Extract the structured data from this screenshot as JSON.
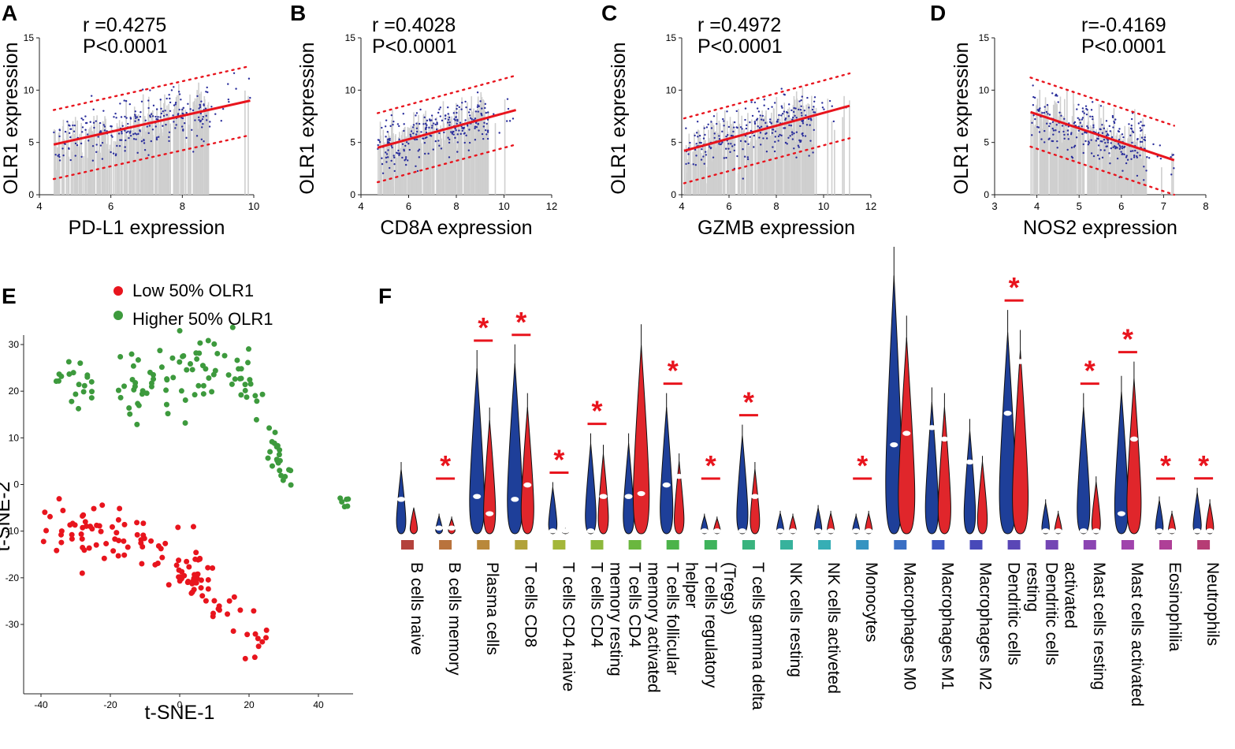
{
  "colors": {
    "red": "#e8141d",
    "blue": "#1f3a93",
    "green": "#3d9a3d",
    "gray_bar": "#cfcfcf",
    "scatter_point": "#2b2f9c",
    "violin_red": "#e0262b",
    "violin_blue": "#1e3f99"
  },
  "chart_data": [
    {
      "panel": "A",
      "type": "scatter",
      "stat_r": "r =0.4275",
      "stat_p": "P<0.0001",
      "xlabel": "PD-L1 expression",
      "ylabel": "OLR1 expression",
      "xlim": [
        4,
        10
      ],
      "ylim": [
        0,
        15
      ],
      "xticks": [
        "4",
        "6",
        "8",
        "10"
      ],
      "yticks": [
        "0",
        "5",
        "10",
        "15"
      ],
      "x_range": [
        4.4,
        9.9
      ],
      "fit": {
        "x1": 4.4,
        "y1": 4.8,
        "x2": 9.9,
        "y2": 9.0
      },
      "band_offset": 3.3
    },
    {
      "panel": "B",
      "type": "scatter",
      "stat_r": "r =0.4028",
      "stat_p": "P<0.0001",
      "xlabel": "CD8A expression",
      "ylabel": "OLR1 expression",
      "xlim": [
        4,
        12
      ],
      "ylim": [
        0,
        15
      ],
      "xticks": [
        "4",
        "6",
        "8",
        "10",
        "12"
      ],
      "yticks": [
        "0",
        "5",
        "10",
        "15"
      ],
      "x_range": [
        4.7,
        10.5
      ],
      "fit": {
        "x1": 4.7,
        "y1": 4.5,
        "x2": 10.5,
        "y2": 8.1
      },
      "band_offset": 3.3
    },
    {
      "panel": "C",
      "type": "scatter",
      "stat_r": "r =0.4972",
      "stat_p": "P<0.0001",
      "xlabel": "GZMB expression",
      "ylabel": "OLR1 expression",
      "xlim": [
        4,
        12
      ],
      "ylim": [
        0,
        15
      ],
      "xticks": [
        "4",
        "6",
        "8",
        "10",
        "12"
      ],
      "yticks": [
        "0",
        "5",
        "10",
        "15"
      ],
      "x_range": [
        4.1,
        11.1
      ],
      "fit": {
        "x1": 4.1,
        "y1": 4.2,
        "x2": 11.1,
        "y2": 8.5
      },
      "band_offset": 3.1
    },
    {
      "panel": "D",
      "type": "scatter",
      "stat_r": "r=-0.4169",
      "stat_p": "P<0.0001",
      "xlabel": "NOS2 expression",
      "ylabel": "OLR1 expression",
      "xlim": [
        3,
        8
      ],
      "ylim": [
        0,
        15
      ],
      "xticks": [
        "3",
        "4",
        "5",
        "6",
        "7",
        "8"
      ],
      "yticks": [
        "0",
        "5",
        "10",
        "15"
      ],
      "x_range": [
        3.85,
        7.25
      ],
      "fit": {
        "x1": 3.85,
        "y1": 7.9,
        "x2": 7.25,
        "y2": 3.3
      },
      "band_offset": 3.3
    },
    {
      "panel": "E",
      "type": "scatter",
      "xlabel": "t-SNE-1",
      "ylabel": "t-SNE-2",
      "xlim": [
        -40,
        50
      ],
      "ylim": [
        -38,
        31
      ],
      "xticks": [
        "-40",
        "-20",
        "0",
        "20",
        "40"
      ],
      "yticks": [
        "30",
        "20",
        "10",
        "0",
        "-10",
        "-20",
        "-30"
      ],
      "legend": [
        "Low 50% OLR1",
        "Higher 50% OLR1"
      ],
      "clusters": [
        {
          "group": "high",
          "cx": -30,
          "cy": 22,
          "sx": 4,
          "sy": 2.5,
          "n": 20
        },
        {
          "group": "high",
          "cx": -11,
          "cy": 21,
          "sx": 4,
          "sy": 4,
          "n": 28
        },
        {
          "group": "high",
          "cx": 3,
          "cy": 24,
          "sx": 6,
          "sy": 3,
          "n": 35
        },
        {
          "group": "high",
          "cx": 19,
          "cy": 22,
          "sx": 3,
          "sy": 4,
          "n": 18
        },
        {
          "group": "high",
          "cx": 28,
          "cy": 6,
          "sx": 2.5,
          "sy": 5,
          "n": 22
        },
        {
          "group": "high",
          "cx": 48,
          "cy": -3,
          "sx": 1,
          "sy": 1,
          "n": 6
        },
        {
          "group": "low",
          "cx": -30,
          "cy": -10,
          "sx": 5,
          "sy": 3,
          "n": 35
        },
        {
          "group": "low",
          "cx": -13,
          "cy": -12,
          "sx": 5,
          "sy": 3,
          "n": 30
        },
        {
          "group": "low",
          "cx": 2,
          "cy": -18,
          "sx": 4,
          "sy": 3,
          "n": 22
        },
        {
          "group": "low",
          "cx": 12,
          "cy": -28,
          "sx": 5,
          "sy": 4,
          "n": 40
        }
      ]
    },
    {
      "panel": "F",
      "type": "violin",
      "categories": [
        "B cells naive",
        "B cells memory",
        "Plasma cells",
        "T cells CD8",
        "T cells CD4 naive",
        "T cells CD4 memory resting",
        "T cells CD4 memory activated",
        "T cells follicular helper",
        "T cells regulatory (Tregs)",
        "T cells gamma delta",
        "NK cells resting",
        "NK cells activeted",
        "Monocytes",
        "Macrophages M0",
        "Macrophages M1",
        "Macrophages M2",
        "Dendritic cells resting",
        "Dendritic cells activated",
        "Mast cells resting",
        "Mast cells activated",
        "Eosinophilia",
        "Neutrophils"
      ],
      "label_lines": [
        [
          "B cells naive"
        ],
        [
          "B cells memory"
        ],
        [
          "Plasma cells"
        ],
        [
          "T cells CD8"
        ],
        [
          "T cells CD4 naive"
        ],
        [
          "T cells CD4",
          "memory resting"
        ],
        [
          "T cells CD4",
          "memory activated"
        ],
        [
          "T cells follicular",
          "helper"
        ],
        [
          "T cells regulatory",
          "(Tregs)"
        ],
        [
          "T cells gamma delta"
        ],
        [
          "NK cells resting"
        ],
        [
          "NK cells activeted"
        ],
        [
          "Monocytes"
        ],
        [
          "Macrophages M0"
        ],
        [
          "Macrophages M1"
        ],
        [
          "Macrophages M2"
        ],
        [
          "Dendritic cells",
          "resting"
        ],
        [
          "Dendritic cells",
          "activated"
        ],
        [
          "Mast cells resting"
        ],
        [
          "Mast cells activated"
        ],
        [
          "Eosinophilia"
        ],
        [
          "Neutrophils"
        ]
      ],
      "swatch_colors": [
        "#b4423c",
        "#b9733d",
        "#b9883a",
        "#b1a23a",
        "#a4b73a",
        "#8db83c",
        "#6ab73f",
        "#4cb34a",
        "#3fb35c",
        "#39b37e",
        "#37b29c",
        "#36aeb5",
        "#3493c1",
        "#3a6fc4",
        "#3e56c1",
        "#4849b9",
        "#5a47b6",
        "#7446b4",
        "#8b45b2",
        "#a043ac",
        "#af3f97",
        "#b63c75"
      ],
      "series": [
        {
          "name": "Low 50% OLR1",
          "color": "#1e3f99",
          "top": [
            0.25,
            0.07,
            0.64,
            0.66,
            0.18,
            0.35,
            0.35,
            0.49,
            0.07,
            0.38,
            0.08,
            0.1,
            0.07,
            1.0,
            0.51,
            0.4,
            0.78,
            0.12,
            0.49,
            0.55,
            0.13,
            0.16
          ],
          "median": [
            0.12,
            0.02,
            0.13,
            0.12,
            0.01,
            0.01,
            0.13,
            0.17,
            0.01,
            0.01,
            0.01,
            0.01,
            0.01,
            0.31,
            0.37,
            0.25,
            0.42,
            0.01,
            0.01,
            0.07,
            0.01,
            0.01
          ]
        },
        {
          "name": "Higher 50% OLR1",
          "color": "#e0262b",
          "top": [
            0.1,
            0.06,
            0.44,
            0.49,
            0.02,
            0.31,
            0.73,
            0.28,
            0.06,
            0.25,
            0.07,
            0.08,
            0.08,
            0.76,
            0.49,
            0.28,
            0.71,
            0.08,
            0.2,
            0.6,
            0.08,
            0.12
          ],
          "median": [
            0.1,
            0.02,
            0.07,
            0.17,
            0.01,
            0.13,
            0.14,
            0.2,
            0.01,
            0.13,
            0.01,
            0.01,
            0.01,
            0.35,
            0.33,
            0.28,
            0.6,
            0.01,
            0.01,
            0.33,
            0.01,
            0.01
          ]
        }
      ],
      "significant": [
        false,
        true,
        true,
        true,
        true,
        true,
        false,
        true,
        true,
        true,
        false,
        false,
        true,
        false,
        false,
        false,
        true,
        false,
        true,
        true,
        true,
        true
      ],
      "star_symbol": "*"
    }
  ]
}
